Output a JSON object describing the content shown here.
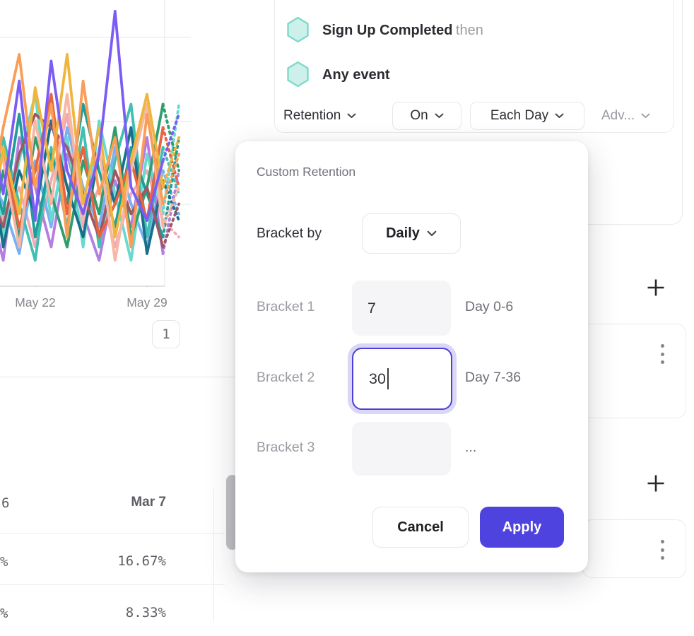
{
  "chart": {
    "type": "line",
    "title": "",
    "xlabel": "",
    "ylabel": "",
    "x_tick_labels": [
      "May 22",
      "May 29"
    ],
    "grid": true,
    "ylim": [
      0,
      100
    ],
    "pagination_label": "1",
    "note": "daily retention lines; dashed tail after last gridline marks incomplete data",
    "series": [
      {
        "name": "series-pink",
        "color": "#f2a9b4",
        "values": [
          42,
          20,
          30,
          12,
          32,
          52,
          18,
          30,
          12,
          28,
          35,
          20,
          15
        ]
      },
      {
        "name": "series-lightblue",
        "color": "#79b0f2",
        "values": [
          35,
          25,
          10,
          38,
          18,
          48,
          30,
          18,
          42,
          25,
          12,
          35,
          22
        ]
      },
      {
        "name": "series-orchid",
        "color": "#b47de0",
        "values": [
          28,
          8,
          45,
          30,
          12,
          40,
          22,
          8,
          32,
          18,
          45,
          10,
          35
        ]
      },
      {
        "name": "series-turquoise",
        "color": "#41bfb2",
        "values": [
          15,
          45,
          25,
          8,
          42,
          18,
          48,
          12,
          38,
          55,
          15,
          42,
          28
        ]
      },
      {
        "name": "series-aqua",
        "color": "#68d9cf",
        "values": [
          50,
          15,
          38,
          58,
          20,
          45,
          12,
          50,
          28,
          8,
          40,
          22,
          55
        ]
      },
      {
        "name": "series-teal",
        "color": "#1e9e96",
        "values": [
          38,
          22,
          52,
          15,
          40,
          25,
          55,
          35,
          18,
          42,
          28,
          15,
          45
        ]
      },
      {
        "name": "series-green",
        "color": "#2f9e6f",
        "values": [
          8,
          35,
          15,
          45,
          28,
          12,
          38,
          22,
          48,
          15,
          30,
          55,
          35
        ]
      },
      {
        "name": "series-darkteal",
        "color": "#186f8a",
        "values": [
          45,
          12,
          35,
          22,
          50,
          30,
          15,
          40,
          25,
          48,
          10,
          32,
          20
        ]
      },
      {
        "name": "series-maroon",
        "color": "#9e5764",
        "values": [
          30,
          18,
          40,
          52,
          48,
          42,
          28,
          15,
          35,
          22,
          30,
          12,
          25
        ]
      },
      {
        "name": "series-redorange",
        "color": "#e8643f",
        "values": [
          22,
          40,
          18,
          35,
          58,
          22,
          42,
          15,
          25,
          38,
          20,
          48,
          30
        ]
      },
      {
        "name": "series-peach",
        "color": "#f8b7a4",
        "values": [
          65,
          38,
          12,
          50,
          25,
          58,
          20,
          42,
          8,
          35,
          55,
          18,
          30
        ]
      },
      {
        "name": "series-gold",
        "color": "#efb63c",
        "values": [
          10,
          42,
          22,
          60,
          35,
          70,
          25,
          48,
          15,
          38,
          58,
          30,
          45
        ]
      },
      {
        "name": "series-orange",
        "color": "#f99d57",
        "values": [
          20,
          48,
          70,
          30,
          55,
          15,
          62,
          28,
          45,
          12,
          52,
          25,
          40
        ]
      },
      {
        "name": "series-purple",
        "color": "#7b5cf5",
        "values": [
          55,
          28,
          62,
          20,
          68,
          35,
          22,
          40,
          83,
          30,
          20,
          38,
          52
        ]
      }
    ]
  },
  "table": {
    "header_partial": "6",
    "header": "Mar 7",
    "rows": [
      {
        "partial": "%",
        "value": "16.67%"
      },
      {
        "partial": "%",
        "value": "8.33%"
      }
    ]
  },
  "query_builder": {
    "step1_label": "Sign Up Completed",
    "step1_suffix": "then",
    "step2_label": "Any event",
    "retention_label": "Retention",
    "on_label": "On",
    "each_day_label": "Each Day",
    "advanced_label": "Adv..."
  },
  "modal": {
    "title": "Custom Retention",
    "bracket_by_label": "Bracket by",
    "interval_value": "Daily",
    "rows": [
      {
        "label": "Bracket 1",
        "value": "7",
        "range_label": "Day 0-6"
      },
      {
        "label": "Bracket 2",
        "value": "30",
        "range_label": "Day 7-36"
      },
      {
        "label": "Bracket 3",
        "value": "",
        "range_label": "..."
      }
    ],
    "cancel_label": "Cancel",
    "apply_label": "Apply"
  },
  "icons": {
    "step_icon": "hexagon",
    "dropdown_icon": "chevron-down",
    "add_icon": "plus",
    "more_icon": "kebab-vertical"
  },
  "colors": {
    "accent": "#4f43e0",
    "focus_border": "#4b3fd6",
    "focus_ring": "#dad6f6",
    "hexagon_fill": "#cdf0ea",
    "hexagon_stroke": "#7fd9ca",
    "muted_text": "#9b9ba1",
    "grid_line": "#ededef"
  }
}
